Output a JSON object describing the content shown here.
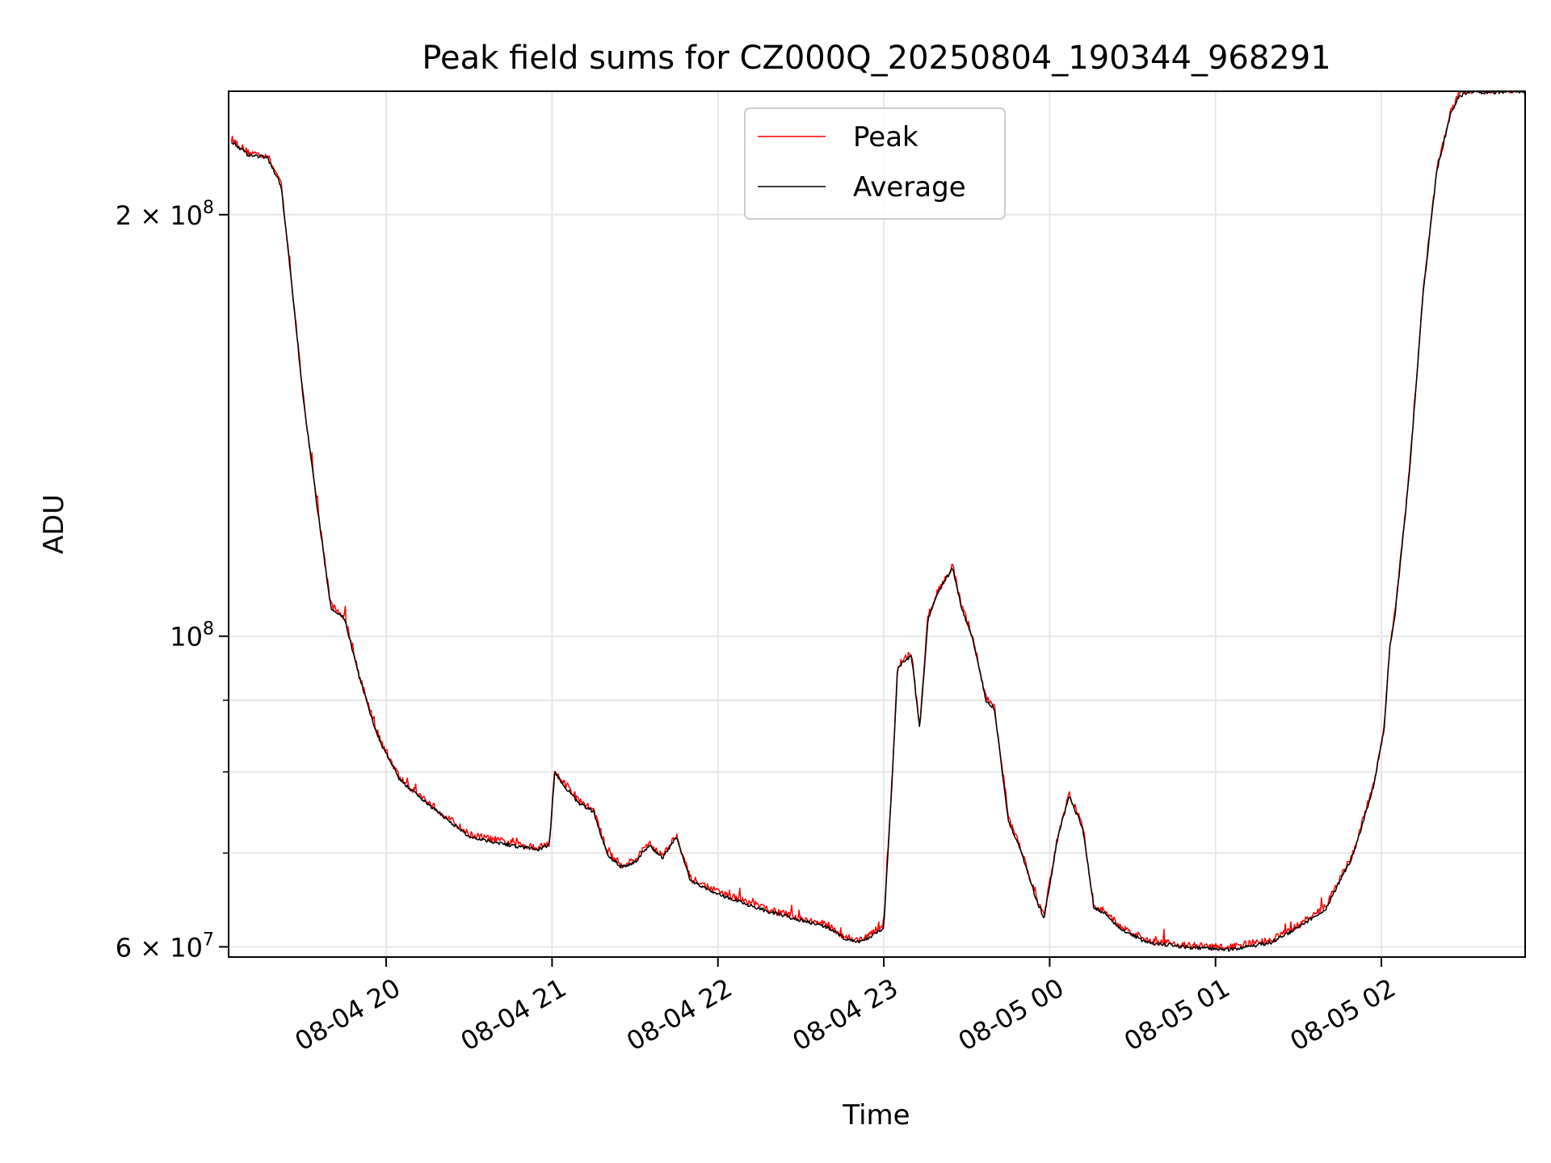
{
  "chart_data": {
    "type": "line",
    "title": "Peak field sums for CZ000Q_20250804_190344_968291",
    "xlabel": "Time",
    "ylabel": "ADU",
    "yscale": "log",
    "ylim": [
      59000000,
      245000000
    ],
    "xlim": [
      "2025-08-04 19:03",
      "2025-08-05 02:52"
    ],
    "grid": true,
    "legend_location": "upper center",
    "x_ticks": [
      {
        "t": "2025-08-04 20:00",
        "label": "08-04 20"
      },
      {
        "t": "2025-08-04 21:00",
        "label": "08-04 21"
      },
      {
        "t": "2025-08-04 22:00",
        "label": "08-04 22"
      },
      {
        "t": "2025-08-04 23:00",
        "label": "08-04 23"
      },
      {
        "t": "2025-08-05 00:00",
        "label": "08-05 00"
      },
      {
        "t": "2025-08-05 01:00",
        "label": "08-05 01"
      },
      {
        "t": "2025-08-05 02:00",
        "label": "08-05 02"
      }
    ],
    "y_ticks_major": [
      {
        "value": 60000000,
        "mantissa": "6 × 10",
        "exp": "7"
      },
      {
        "value": 100000000,
        "mantissa": "10",
        "exp": "8"
      },
      {
        "value": 200000000,
        "mantissa": "2 × 10",
        "exp": "8"
      }
    ],
    "y_ticks_minor": [
      70000000,
      80000000,
      90000000
    ],
    "series": [
      {
        "name": "Peak",
        "color": "#ff0000",
        "noise": 0.006
      },
      {
        "name": "Average",
        "color": "#000000",
        "noise": 0
      }
    ],
    "x": [
      "2025-08-04 19:04",
      "2025-08-04 19:10",
      "2025-08-04 19:17",
      "2025-08-04 19:22",
      "2025-08-04 19:25",
      "2025-08-04 19:30",
      "2025-08-04 19:35",
      "2025-08-04 19:40",
      "2025-08-04 19:45",
      "2025-08-04 19:50",
      "2025-08-04 19:56",
      "2025-08-04 19:58",
      "2025-08-04 20:05",
      "2025-08-04 20:15",
      "2025-08-04 20:30",
      "2025-08-04 20:45",
      "2025-08-04 20:55",
      "2025-08-04 20:59",
      "2025-08-04 21:01",
      "2025-08-04 21:05",
      "2025-08-04 21:10",
      "2025-08-04 21:15",
      "2025-08-04 21:20",
      "2025-08-04 21:25",
      "2025-08-04 21:30",
      "2025-08-04 21:35",
      "2025-08-04 21:40",
      "2025-08-04 21:45",
      "2025-08-04 21:50",
      "2025-08-04 22:00",
      "2025-08-04 22:20",
      "2025-08-04 22:40",
      "2025-08-04 22:45",
      "2025-08-04 22:50",
      "2025-08-04 22:55",
      "2025-08-04 22:57",
      "2025-08-04 23:00",
      "2025-08-04 23:03",
      "2025-08-04 23:05",
      "2025-08-04 23:10",
      "2025-08-04 23:13",
      "2025-08-04 23:16",
      "2025-08-04 23:20",
      "2025-08-04 23:25",
      "2025-08-04 23:28",
      "2025-08-04 23:32",
      "2025-08-04 23:37",
      "2025-08-04 23:40",
      "2025-08-04 23:45",
      "2025-08-04 23:50",
      "2025-08-04 23:55",
      "2025-08-04 23:58",
      "2025-08-05 00:03",
      "2025-08-05 00:07",
      "2025-08-05 00:12",
      "2025-08-05 00:16",
      "2025-08-05 00:20",
      "2025-08-05 00:25",
      "2025-08-05 00:35",
      "2025-08-05 00:50",
      "2025-08-05 01:05",
      "2025-08-05 01:20",
      "2025-08-05 01:30",
      "2025-08-05 01:40",
      "2025-08-05 01:50",
      "2025-08-05 01:57",
      "2025-08-05 02:01",
      "2025-08-05 02:03",
      "2025-08-05 02:05",
      "2025-08-05 02:10",
      "2025-08-05 02:15",
      "2025-08-05 02:20",
      "2025-08-05 02:25",
      "2025-08-05 02:28",
      "2025-08-05 02:31",
      "2025-08-05 02:34",
      "2025-08-05 02:40",
      "2025-08-05 02:52"
    ],
    "y": [
      226000000,
      221000000,
      220000000,
      210000000,
      185000000,
      148000000,
      124000000,
      105000000,
      103000000,
      94000000,
      86000000,
      84000000,
      79000000,
      76000000,
      72000000,
      71000000,
      70500000,
      71000000,
      80000000,
      78000000,
      76000000,
      75000000,
      70000000,
      68500000,
      69000000,
      71000000,
      69500000,
      72000000,
      67000000,
      65500000,
      63500000,
      62000000,
      61000000,
      60500000,
      61000000,
      61500000,
      62000000,
      79000000,
      95000000,
      97000000,
      86000000,
      103000000,
      108000000,
      112000000,
      105000000,
      100000000,
      90000000,
      89000000,
      74000000,
      70000000,
      65000000,
      63000000,
      72000000,
      77000000,
      73000000,
      64000000,
      63500000,
      62000000,
      60500000,
      60000000,
      59800000,
      60500000,
      62000000,
      64000000,
      70000000,
      78000000,
      86000000,
      98000000,
      104000000,
      130000000,
      175000000,
      215000000,
      236000000,
      243000000,
      245000000,
      245000000,
      245000000,
      245000000
    ]
  }
}
